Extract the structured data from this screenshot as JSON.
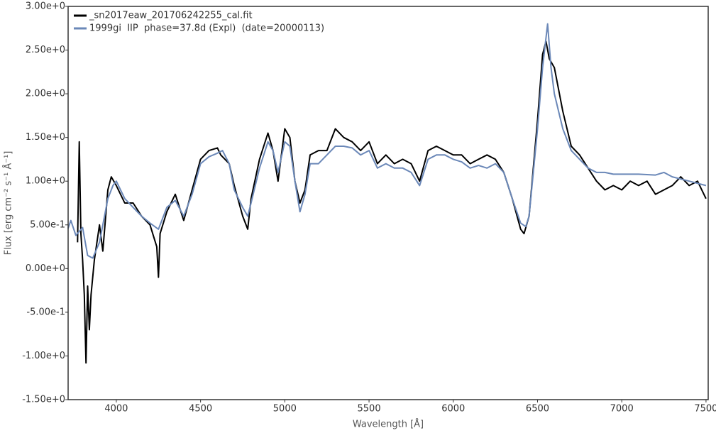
{
  "chart_data": {
    "type": "line",
    "xlabel": "Wavelength [Å]",
    "ylabel": "Flux [erg cm⁻² s⁻¹ Å⁻¹]",
    "xlim": [
      3714,
      7513
    ],
    "ylim": [
      -1.5,
      3.0
    ],
    "xticks": [
      4000,
      4500,
      5000,
      5500,
      6000,
      6500,
      7000,
      7500
    ],
    "yticks": [
      {
        "value": -1.5,
        "label": "-1.50e+0"
      },
      {
        "value": -1.0,
        "label": "-1.00e+0"
      },
      {
        "value": -0.5,
        "label": "-5.00e-1"
      },
      {
        "value": 0,
        "label": "0.00e+0"
      },
      {
        "value": 0.5,
        "label": "5.00e-1"
      },
      {
        "value": 1.0,
        "label": "1.00e+0"
      },
      {
        "value": 1.5,
        "label": "1.50e+0"
      },
      {
        "value": 2.0,
        "label": "2.00e+0"
      },
      {
        "value": 2.5,
        "label": "2.50e+0"
      },
      {
        "value": 3.0,
        "label": "3.00e+0"
      }
    ],
    "grid": false,
    "legend": "upper-left",
    "series": [
      {
        "name": "_sn2017eaw_201706242255_cal.fit",
        "color": "#000000",
        "x": [
          3770,
          3780,
          3790,
          3800,
          3810,
          3820,
          3830,
          3840,
          3850,
          3870,
          3900,
          3920,
          3950,
          3970,
          4000,
          4050,
          4100,
          4150,
          4200,
          4240,
          4250,
          4260,
          4300,
          4350,
          4400,
          4450,
          4500,
          4550,
          4600,
          4620,
          4670,
          4700,
          4750,
          4780,
          4800,
          4850,
          4900,
          4930,
          4960,
          5000,
          5030,
          5060,
          5090,
          5120,
          5150,
          5200,
          5250,
          5300,
          5350,
          5400,
          5450,
          5500,
          5550,
          5600,
          5650,
          5700,
          5750,
          5800,
          5850,
          5900,
          5950,
          6000,
          6050,
          6100,
          6150,
          6200,
          6250,
          6300,
          6350,
          6400,
          6420,
          6450,
          6500,
          6530,
          6550,
          6570,
          6600,
          6650,
          6700,
          6750,
          6800,
          6850,
          6900,
          6950,
          7000,
          7050,
          7100,
          7150,
          7200,
          7250,
          7300,
          7350,
          7400,
          7450,
          7500
        ],
        "values": [
          0.3,
          1.45,
          0.4,
          0.1,
          -0.3,
          -1.08,
          -0.2,
          -0.7,
          -0.3,
          0.1,
          0.5,
          0.2,
          0.9,
          1.05,
          0.95,
          0.75,
          0.75,
          0.6,
          0.5,
          0.25,
          -0.1,
          0.4,
          0.65,
          0.85,
          0.55,
          0.9,
          1.25,
          1.35,
          1.38,
          1.3,
          1.2,
          0.95,
          0.6,
          0.45,
          0.8,
          1.25,
          1.55,
          1.35,
          1.0,
          1.6,
          1.5,
          1.0,
          0.75,
          0.9,
          1.3,
          1.35,
          1.35,
          1.6,
          1.5,
          1.45,
          1.35,
          1.45,
          1.2,
          1.3,
          1.2,
          1.25,
          1.2,
          1.0,
          1.35,
          1.4,
          1.35,
          1.3,
          1.3,
          1.2,
          1.25,
          1.3,
          1.25,
          1.1,
          0.8,
          0.45,
          0.4,
          0.6,
          1.7,
          2.45,
          2.6,
          2.4,
          2.3,
          1.8,
          1.4,
          1.3,
          1.15,
          1.0,
          0.9,
          0.95,
          0.9,
          1.0,
          0.95,
          1.0,
          0.85,
          0.9,
          0.95,
          1.05,
          0.95,
          1.0,
          0.8
        ]
      },
      {
        "name": "1999gi  IIP  phase=37.8d (Expl)  (date=20000113)",
        "color": "#6b88b8",
        "x": [
          3714,
          3730,
          3760,
          3800,
          3830,
          3860,
          3900,
          3950,
          3980,
          4000,
          4050,
          4100,
          4150,
          4200,
          4250,
          4300,
          4350,
          4400,
          4450,
          4500,
          4550,
          4600,
          4630,
          4670,
          4700,
          4750,
          4780,
          4800,
          4850,
          4900,
          4930,
          4960,
          5000,
          5030,
          5060,
          5090,
          5120,
          5150,
          5200,
          5250,
          5300,
          5350,
          5400,
          5450,
          5500,
          5550,
          5600,
          5650,
          5700,
          5750,
          5800,
          5850,
          5900,
          5950,
          6000,
          6050,
          6100,
          6150,
          6200,
          6250,
          6300,
          6350,
          6400,
          6430,
          6450,
          6500,
          6530,
          6560,
          6580,
          6600,
          6650,
          6700,
          6750,
          6800,
          6850,
          6900,
          6950,
          7000,
          7100,
          7200,
          7250,
          7300,
          7400,
          7500
        ],
        "values": [
          0.46,
          0.55,
          0.38,
          0.47,
          0.15,
          0.12,
          0.3,
          0.8,
          0.95,
          1.0,
          0.8,
          0.7,
          0.6,
          0.52,
          0.45,
          0.7,
          0.78,
          0.6,
          0.85,
          1.2,
          1.28,
          1.32,
          1.35,
          1.2,
          0.9,
          0.7,
          0.6,
          0.75,
          1.15,
          1.45,
          1.35,
          1.1,
          1.45,
          1.4,
          1.0,
          0.65,
          0.85,
          1.2,
          1.2,
          1.3,
          1.4,
          1.4,
          1.38,
          1.3,
          1.35,
          1.15,
          1.2,
          1.15,
          1.15,
          1.1,
          0.95,
          1.25,
          1.3,
          1.3,
          1.25,
          1.22,
          1.15,
          1.18,
          1.15,
          1.2,
          1.1,
          0.8,
          0.52,
          0.48,
          0.6,
          1.6,
          2.3,
          2.8,
          2.3,
          2.0,
          1.6,
          1.35,
          1.25,
          1.15,
          1.1,
          1.1,
          1.08,
          1.08,
          1.08,
          1.07,
          1.1,
          1.05,
          1.0,
          0.95
        ]
      }
    ]
  }
}
